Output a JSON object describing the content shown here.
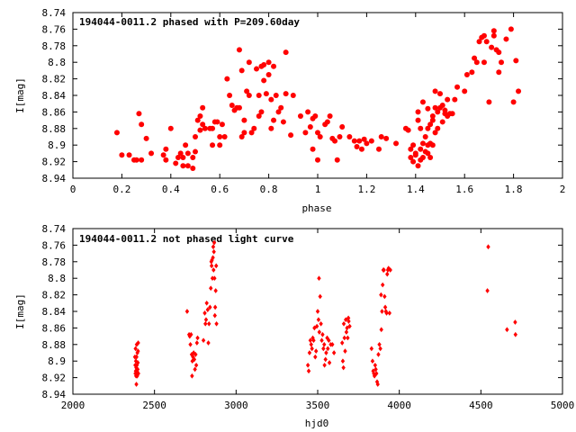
{
  "colors": {
    "points": "#ff0000",
    "axes": "#000000",
    "background": "#ffffff"
  },
  "chart_data": [
    {
      "type": "scatter",
      "title": "194044-0011.2 phased with P=209.60day",
      "xlabel": "phase",
      "ylabel": "I[mag]",
      "xlim": [
        0,
        2
      ],
      "ylim": [
        8.94,
        8.74
      ],
      "y_inverted": true,
      "grid": false,
      "legend": "none",
      "marker": "filled-circle",
      "xticks": [
        "0",
        "0.2",
        "0.4",
        "0.6",
        "0.8",
        "1",
        "1.2",
        "1.4",
        "1.6",
        "1.8",
        "2"
      ],
      "yticks": [
        "8.74",
        "8.76",
        "8.78",
        "8.8",
        "8.82",
        "8.84",
        "8.86",
        "8.88",
        "8.9",
        "8.92",
        "8.94"
      ],
      "points": [
        [
          0.18,
          8.885
        ],
        [
          0.2,
          8.912
        ],
        [
          0.23,
          8.912
        ],
        [
          0.25,
          8.918
        ],
        [
          0.26,
          8.918
        ],
        [
          0.27,
          8.862
        ],
        [
          0.28,
          8.918
        ],
        [
          0.28,
          8.875
        ],
        [
          0.3,
          8.892
        ],
        [
          0.32,
          8.91
        ],
        [
          0.37,
          8.912
        ],
        [
          0.38,
          8.918
        ],
        [
          0.38,
          8.905
        ],
        [
          0.4,
          8.88
        ],
        [
          0.42,
          8.922
        ],
        [
          0.43,
          8.915
        ],
        [
          0.44,
          8.91
        ],
        [
          0.45,
          8.925
        ],
        [
          0.45,
          8.915
        ],
        [
          0.46,
          8.9
        ],
        [
          0.47,
          8.925
        ],
        [
          0.47,
          8.91
        ],
        [
          0.49,
          8.928
        ],
        [
          0.49,
          8.915
        ],
        [
          0.5,
          8.89
        ],
        [
          0.5,
          8.908
        ],
        [
          0.51,
          8.87
        ],
        [
          0.52,
          8.865
        ],
        [
          0.52,
          8.882
        ],
        [
          0.53,
          8.875
        ],
        [
          0.53,
          8.855
        ],
        [
          0.54,
          8.88
        ],
        [
          0.56,
          8.88
        ],
        [
          0.57,
          8.88
        ],
        [
          0.57,
          8.9
        ],
        [
          0.58,
          8.872
        ],
        [
          0.59,
          8.872
        ],
        [
          0.6,
          8.89
        ],
        [
          0.6,
          8.9
        ],
        [
          0.61,
          8.875
        ],
        [
          0.62,
          8.89
        ],
        [
          0.63,
          8.82
        ],
        [
          0.64,
          8.84
        ],
        [
          0.65,
          8.852
        ],
        [
          0.66,
          8.858
        ],
        [
          0.67,
          8.855
        ],
        [
          0.68,
          8.855
        ],
        [
          0.68,
          8.785
        ],
        [
          0.69,
          8.81
        ],
        [
          0.69,
          8.89
        ],
        [
          0.7,
          8.885
        ],
        [
          0.7,
          8.87
        ],
        [
          0.71,
          8.835
        ],
        [
          0.72,
          8.84
        ],
        [
          0.72,
          8.8
        ],
        [
          0.73,
          8.885
        ],
        [
          0.74,
          8.88
        ],
        [
          0.75,
          8.808
        ],
        [
          0.76,
          8.865
        ],
        [
          0.76,
          8.84
        ],
        [
          0.77,
          8.86
        ],
        [
          0.77,
          8.805
        ],
        [
          0.78,
          8.803
        ],
        [
          0.78,
          8.822
        ],
        [
          0.79,
          8.838
        ],
        [
          0.8,
          8.815
        ],
        [
          0.8,
          8.8
        ],
        [
          0.81,
          8.88
        ],
        [
          0.81,
          8.845
        ],
        [
          0.82,
          8.805
        ],
        [
          0.82,
          8.87
        ],
        [
          0.83,
          8.84
        ],
        [
          0.84,
          8.86
        ],
        [
          0.85,
          8.855
        ],
        [
          0.86,
          8.872
        ],
        [
          0.87,
          8.838
        ],
        [
          0.87,
          8.788
        ],
        [
          0.89,
          8.888
        ],
        [
          0.9,
          8.84
        ],
        [
          0.93,
          8.865
        ],
        [
          0.95,
          8.885
        ],
        [
          0.96,
          8.86
        ],
        [
          0.97,
          8.878
        ],
        [
          0.98,
          8.905
        ],
        [
          0.98,
          8.868
        ],
        [
          0.99,
          8.865
        ],
        [
          1.0,
          8.885
        ],
        [
          1.0,
          8.918
        ],
        [
          1.01,
          8.89
        ],
        [
          1.03,
          8.875
        ],
        [
          1.04,
          8.872
        ],
        [
          1.05,
          8.865
        ],
        [
          1.06,
          8.892
        ],
        [
          1.07,
          8.895
        ],
        [
          1.08,
          8.918
        ],
        [
          1.09,
          8.89
        ],
        [
          1.1,
          8.878
        ],
        [
          1.13,
          8.89
        ],
        [
          1.15,
          8.895
        ],
        [
          1.16,
          8.902
        ],
        [
          1.17,
          8.895
        ],
        [
          1.18,
          8.905
        ],
        [
          1.19,
          8.893
        ],
        [
          1.2,
          8.898
        ],
        [
          1.22,
          8.895
        ],
        [
          1.25,
          8.905
        ],
        [
          1.26,
          8.89
        ],
        [
          1.28,
          8.892
        ],
        [
          1.32,
          8.898
        ],
        [
          1.36,
          8.88
        ],
        [
          1.37,
          8.882
        ],
        [
          1.38,
          8.915
        ],
        [
          1.38,
          8.905
        ],
        [
          1.39,
          8.9
        ],
        [
          1.39,
          8.92
        ],
        [
          1.4,
          8.912
        ],
        [
          1.4,
          8.91
        ],
        [
          1.41,
          8.925
        ],
        [
          1.41,
          8.87
        ],
        [
          1.41,
          8.86
        ],
        [
          1.42,
          8.918
        ],
        [
          1.42,
          8.905
        ],
        [
          1.42,
          8.88
        ],
        [
          1.43,
          8.915
        ],
        [
          1.43,
          8.898
        ],
        [
          1.43,
          8.848
        ],
        [
          1.44,
          8.908
        ],
        [
          1.44,
          8.89
        ],
        [
          1.45,
          8.91
        ],
        [
          1.45,
          8.9
        ],
        [
          1.45,
          8.88
        ],
        [
          1.45,
          8.856
        ],
        [
          1.46,
          8.915
        ],
        [
          1.46,
          8.898
        ],
        [
          1.46,
          8.875
        ],
        [
          1.47,
          8.87
        ],
        [
          1.47,
          8.9
        ],
        [
          1.47,
          8.865
        ],
        [
          1.48,
          8.885
        ],
        [
          1.48,
          8.855
        ],
        [
          1.48,
          8.835
        ],
        [
          1.49,
          8.88
        ],
        [
          1.49,
          8.86
        ],
        [
          1.5,
          8.855
        ],
        [
          1.5,
          8.838
        ],
        [
          1.51,
          8.872
        ],
        [
          1.51,
          8.852
        ],
        [
          1.52,
          8.862
        ],
        [
          1.52,
          8.858
        ],
        [
          1.53,
          8.845
        ],
        [
          1.53,
          8.865
        ],
        [
          1.54,
          8.862
        ],
        [
          1.55,
          8.862
        ],
        [
          1.56,
          8.845
        ],
        [
          1.57,
          8.83
        ],
        [
          1.6,
          8.835
        ],
        [
          1.61,
          8.815
        ],
        [
          1.63,
          8.812
        ],
        [
          1.64,
          8.795
        ],
        [
          1.65,
          8.8
        ],
        [
          1.66,
          8.775
        ],
        [
          1.67,
          8.77
        ],
        [
          1.68,
          8.768
        ],
        [
          1.68,
          8.8
        ],
        [
          1.69,
          8.775
        ],
        [
          1.7,
          8.848
        ],
        [
          1.71,
          8.782
        ],
        [
          1.72,
          8.762
        ],
        [
          1.72,
          8.768
        ],
        [
          1.73,
          8.785
        ],
        [
          1.74,
          8.788
        ],
        [
          1.74,
          8.812
        ],
        [
          1.75,
          8.8
        ],
        [
          1.77,
          8.772
        ],
        [
          1.79,
          8.76
        ],
        [
          1.8,
          8.848
        ],
        [
          1.81,
          8.798
        ],
        [
          1.82,
          8.835
        ]
      ]
    },
    {
      "type": "scatter",
      "title": "194044-0011.2 not phased light curve",
      "xlabel": "hjd0",
      "ylabel": "I[mag]",
      "xlim": [
        2000,
        5000
      ],
      "ylim": [
        8.94,
        8.74
      ],
      "y_inverted": true,
      "grid": false,
      "legend": "none",
      "marker": "small-diamond",
      "xticks": [
        "2000",
        "2500",
        "3000",
        "3500",
        "4000",
        "4500",
        "5000"
      ],
      "yticks": [
        "8.74",
        "8.76",
        "8.78",
        "8.8",
        "8.82",
        "8.84",
        "8.86",
        "8.88",
        "8.9",
        "8.92",
        "8.94"
      ],
      "points": [
        [
          2380,
          8.895
        ],
        [
          2382,
          8.905
        ],
        [
          2383,
          8.915
        ],
        [
          2384,
          8.885
        ],
        [
          2385,
          8.912
        ],
        [
          2386,
          8.9
        ],
        [
          2387,
          8.918
        ],
        [
          2388,
          8.908
        ],
        [
          2389,
          8.928
        ],
        [
          2390,
          8.895
        ],
        [
          2391,
          8.88
        ],
        [
          2392,
          8.905
        ],
        [
          2393,
          8.912
        ],
        [
          2394,
          8.918
        ],
        [
          2395,
          8.89
        ],
        [
          2397,
          8.91
        ],
        [
          2398,
          8.902
        ],
        [
          2399,
          8.888
        ],
        [
          2400,
          8.878
        ],
        [
          2401,
          8.915
        ],
        [
          2700,
          8.84
        ],
        [
          2712,
          8.868
        ],
        [
          2716,
          8.87
        ],
        [
          2720,
          8.88
        ],
        [
          2724,
          8.868
        ],
        [
          2728,
          8.892
        ],
        [
          2730,
          8.918
        ],
        [
          2732,
          8.9
        ],
        [
          2736,
          8.895
        ],
        [
          2740,
          8.89
        ],
        [
          2744,
          8.898
        ],
        [
          2748,
          8.91
        ],
        [
          2752,
          8.892
        ],
        [
          2756,
          8.905
        ],
        [
          2760,
          8.878
        ],
        [
          2764,
          8.872
        ],
        [
          2800,
          8.875
        ],
        [
          2808,
          8.842
        ],
        [
          2812,
          8.855
        ],
        [
          2816,
          8.85
        ],
        [
          2820,
          8.83
        ],
        [
          2826,
          8.838
        ],
        [
          2830,
          8.878
        ],
        [
          2834,
          8.855
        ],
        [
          2840,
          8.835
        ],
        [
          2845,
          8.812
        ],
        [
          2848,
          8.78
        ],
        [
          2850,
          8.785
        ],
        [
          2852,
          8.778
        ],
        [
          2855,
          8.8
        ],
        [
          2858,
          8.775
        ],
        [
          2860,
          8.762
        ],
        [
          2862,
          8.79
        ],
        [
          2864,
          8.768
        ],
        [
          2866,
          8.757
        ],
        [
          2868,
          8.8
        ],
        [
          2870,
          8.845
        ],
        [
          2872,
          8.835
        ],
        [
          2875,
          8.815
        ],
        [
          2878,
          8.785
        ],
        [
          2880,
          8.855
        ],
        [
          3440,
          8.905
        ],
        [
          3445,
          8.912
        ],
        [
          3450,
          8.89
        ],
        [
          3455,
          8.875
        ],
        [
          3460,
          8.88
        ],
        [
          3465,
          8.885
        ],
        [
          3470,
          8.872
        ],
        [
          3475,
          8.875
        ],
        [
          3480,
          8.86
        ],
        [
          3485,
          8.895
        ],
        [
          3490,
          8.888
        ],
        [
          3495,
          8.858
        ],
        [
          3500,
          8.84
        ],
        [
          3505,
          8.85
        ],
        [
          3508,
          8.8
        ],
        [
          3510,
          8.865
        ],
        [
          3515,
          8.822
        ],
        [
          3520,
          8.855
        ],
        [
          3525,
          8.875
        ],
        [
          3530,
          8.868
        ],
        [
          3535,
          8.885
        ],
        [
          3540,
          8.88
        ],
        [
          3542,
          8.905
        ],
        [
          3548,
          8.898
        ],
        [
          3552,
          8.89
        ],
        [
          3558,
          8.872
        ],
        [
          3562,
          8.885
        ],
        [
          3568,
          8.875
        ],
        [
          3572,
          8.902
        ],
        [
          3580,
          8.88
        ],
        [
          3590,
          8.88
        ],
        [
          3600,
          8.89
        ],
        [
          3650,
          8.878
        ],
        [
          3654,
          8.9
        ],
        [
          3658,
          8.908
        ],
        [
          3660,
          8.855
        ],
        [
          3664,
          8.872
        ],
        [
          3668,
          8.888
        ],
        [
          3672,
          8.85
        ],
        [
          3676,
          8.865
        ],
        [
          3680,
          8.86
        ],
        [
          3684,
          8.872
        ],
        [
          3688,
          8.848
        ],
        [
          3690,
          8.852
        ],
        [
          3696,
          8.858
        ],
        [
          3830,
          8.885
        ],
        [
          3836,
          8.9
        ],
        [
          3840,
          8.912
        ],
        [
          3844,
          8.915
        ],
        [
          3848,
          8.918
        ],
        [
          3852,
          8.905
        ],
        [
          3856,
          8.91
        ],
        [
          3860,
          8.915
        ],
        [
          3864,
          8.925
        ],
        [
          3868,
          8.928
        ],
        [
          3872,
          8.892
        ],
        [
          3878,
          8.88
        ],
        [
          3884,
          8.885
        ],
        [
          3888,
          8.82
        ],
        [
          3890,
          8.862
        ],
        [
          3894,
          8.84
        ],
        [
          3898,
          8.808
        ],
        [
          3902,
          8.79
        ],
        [
          3906,
          8.79
        ],
        [
          3910,
          8.822
        ],
        [
          3914,
          8.835
        ],
        [
          3918,
          8.84
        ],
        [
          3922,
          8.842
        ],
        [
          3926,
          8.795
        ],
        [
          3930,
          8.79
        ],
        [
          3934,
          8.788
        ],
        [
          3940,
          8.842
        ],
        [
          3945,
          8.79
        ],
        [
          4540,
          8.815
        ],
        [
          4545,
          8.762
        ],
        [
          4660,
          8.862
        ],
        [
          4710,
          8.853
        ],
        [
          4712,
          8.868
        ]
      ]
    }
  ]
}
